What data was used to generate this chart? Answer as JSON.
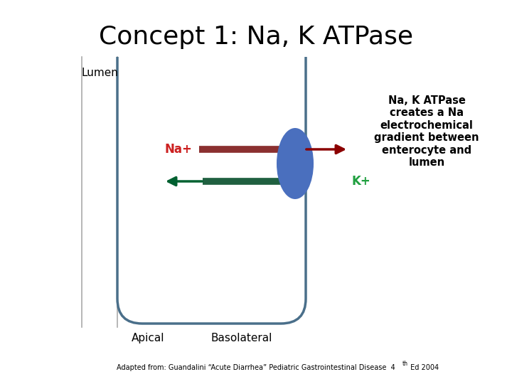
{
  "title": "Concept 1: Na, K ATPase",
  "title_fontsize": 26,
  "bg_color": "#ffffff",
  "lumen_label": "Lumen",
  "apical_label": "Apical",
  "basolateral_label": "Basolateral",
  "na_label": "Na+",
  "kplus_label": "K+",
  "annotation_text": "Na, K ATPase\ncreates a Na\nelectrochemical\ngradient between\nenterocyte and\nlumen",
  "footer_text": "Adapted from: Guandalini “Acute Diarrhea” Pediatric Gastrointestinal Disease  4",
  "footer_superscript": "th",
  "footer_end": " Ed 2004",
  "cell_color": "#4a6f8a",
  "cell_linewidth": 2.5,
  "ellipse_color": "#4a6fbe",
  "na_arrow_color": "#8b0000",
  "na_bar_color": "#8b3030",
  "k_arrow_color": "#006030",
  "k_bar_color": "#206040",
  "na_label_color": "#cc2020",
  "kplus_label_color": "#20a040",
  "annotation_fontsize": 10.5,
  "label_fontsize": 11
}
